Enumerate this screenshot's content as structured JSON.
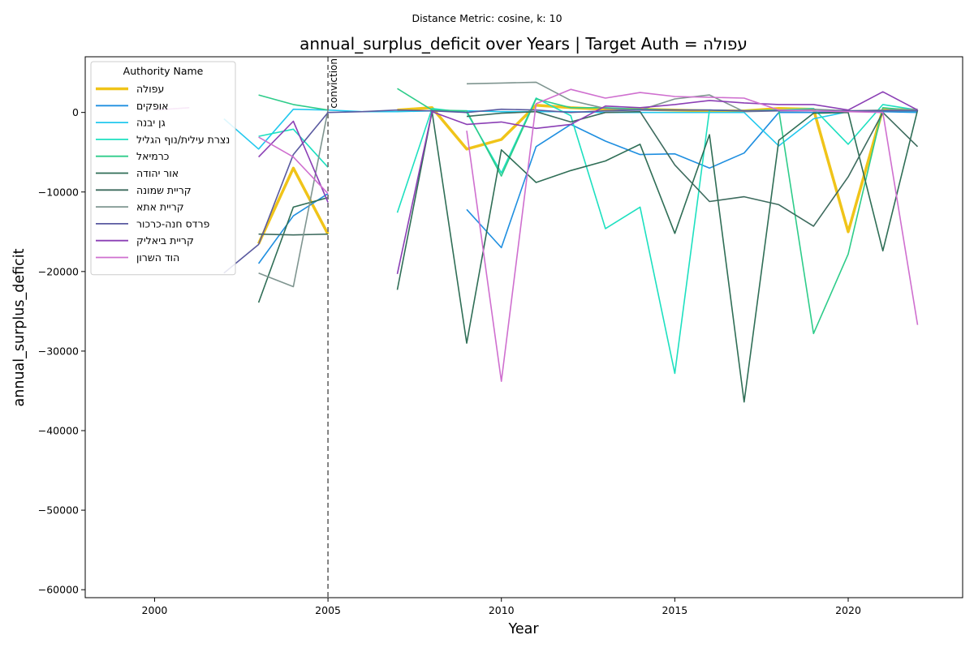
{
  "chart_data": {
    "type": "line",
    "suptitle": "Distance Metric: cosine, k: 10",
    "title": "annual_surplus_deficit over Years | Target Auth = עפולה",
    "xlabel": "Year",
    "ylabel": "annual_surplus_deficit",
    "xlim": [
      1998,
      2023.3
    ],
    "ylim": [
      -61000,
      7000
    ],
    "xticks": [
      2000,
      2005,
      2010,
      2015,
      2020
    ],
    "yticks": [
      -60000,
      -50000,
      -40000,
      -30000,
      -20000,
      -10000,
      0
    ],
    "grid": false,
    "legend": {
      "title": "Authority Name",
      "placement": "top-left"
    },
    "annotation": {
      "label": "conviction",
      "x": 2005
    },
    "series": [
      {
        "name": "עפולה",
        "color": "#f0c419",
        "target": true,
        "points": [
          [
            2003,
            -16500
          ],
          [
            2004,
            -7000
          ],
          [
            2005,
            -15300
          ],
          null,
          [
            2007,
            300
          ],
          [
            2008,
            600
          ],
          [
            2009,
            -4600
          ],
          [
            2010,
            -3400
          ],
          [
            2011,
            900
          ],
          [
            2012,
            600
          ],
          [
            2013,
            400
          ],
          [
            2014,
            400
          ],
          [
            2015,
            300
          ],
          [
            2016,
            200
          ],
          [
            2017,
            200
          ],
          [
            2018,
            500
          ],
          [
            2019,
            400
          ],
          [
            2020,
            -15000
          ],
          [
            2021,
            400
          ],
          [
            2022,
            300
          ]
        ]
      },
      {
        "name": "אופקים",
        "color": "#1f8fe0",
        "points": [
          [
            2003,
            -19000
          ],
          [
            2004,
            -13000
          ],
          [
            2005,
            -10200
          ],
          null,
          [
            2009,
            -12200
          ],
          [
            2010,
            -17000
          ],
          [
            2011,
            -4300
          ],
          [
            2012,
            -1500
          ],
          [
            2013,
            -3600
          ],
          [
            2014,
            -5300
          ],
          [
            2015,
            -5200
          ],
          [
            2016,
            -7000
          ],
          [
            2017,
            -5100
          ],
          [
            2018,
            0
          ],
          [
            2019,
            0
          ],
          [
            2020,
            100
          ],
          [
            2021,
            100
          ],
          [
            2022,
            0
          ]
        ]
      },
      {
        "name": "גן יבנה",
        "color": "#22c8ee",
        "points": [
          [
            2002,
            -800
          ],
          [
            2003,
            -4600
          ],
          [
            2004,
            400
          ],
          [
            2005,
            300
          ],
          [
            2006,
            100
          ],
          [
            2007,
            100
          ],
          [
            2008,
            200
          ],
          [
            2009,
            200
          ],
          [
            2010,
            100
          ],
          [
            2011,
            100
          ],
          [
            2012,
            100
          ],
          [
            2013,
            0
          ],
          [
            2014,
            0
          ],
          [
            2015,
            0
          ],
          [
            2016,
            0
          ],
          [
            2017,
            0
          ],
          [
            2018,
            -4200
          ],
          [
            2019,
            -800
          ],
          [
            2020,
            100
          ],
          [
            2021,
            200
          ],
          [
            2022,
            100
          ]
        ]
      },
      {
        "name": "נצרת עילית/נוף הגליל",
        "color": "#1de0c0",
        "points": [
          [
            2003,
            -3000
          ],
          [
            2004,
            -2100
          ],
          [
            2005,
            -6900
          ],
          null,
          [
            2007,
            -12600
          ],
          [
            2008,
            500
          ],
          [
            2009,
            0
          ],
          [
            2010,
            -7600
          ],
          [
            2011,
            1800
          ],
          [
            2012,
            -400
          ],
          [
            2013,
            -14600
          ],
          [
            2014,
            -11900
          ],
          [
            2015,
            -32800
          ],
          [
            2016,
            300
          ],
          [
            2017,
            200
          ],
          [
            2018,
            300
          ],
          [
            2019,
            500
          ],
          [
            2020,
            -4000
          ],
          [
            2021,
            1000
          ],
          [
            2022,
            300
          ]
        ]
      },
      {
        "name": "כרמיאל",
        "color": "#2ecc8a",
        "points": [
          [
            2003,
            2200
          ],
          [
            2004,
            1000
          ],
          [
            2005,
            300
          ],
          null,
          [
            2007,
            3000
          ],
          [
            2008,
            300
          ],
          [
            2009,
            200
          ],
          [
            2010,
            -8000
          ],
          [
            2011,
            1700
          ],
          [
            2012,
            600
          ],
          [
            2013,
            600
          ],
          [
            2014,
            400
          ],
          [
            2015,
            300
          ],
          [
            2016,
            300
          ],
          [
            2017,
            200
          ],
          [
            2018,
            300
          ],
          [
            2019,
            -27800
          ],
          [
            2020,
            -17800
          ],
          [
            2021,
            600
          ],
          [
            2022,
            200
          ]
        ]
      },
      {
        "name": "אור יהודה",
        "color": "#2f6e56",
        "points": [
          [
            2003,
            -23900
          ],
          [
            2004,
            -11900
          ],
          [
            2005,
            -10700
          ],
          null,
          [
            2007,
            -22300
          ],
          [
            2008,
            100
          ],
          [
            2009,
            -29000
          ],
          [
            2010,
            -4700
          ],
          [
            2011,
            -8800
          ],
          [
            2012,
            -7300
          ],
          [
            2013,
            -6100
          ],
          [
            2014,
            -4000
          ],
          [
            2015,
            -15200
          ],
          [
            2016,
            -2800
          ],
          [
            2017,
            -36400
          ],
          [
            2018,
            -3500
          ],
          [
            2019,
            -100
          ],
          [
            2020,
            0
          ],
          [
            2021,
            -17400
          ],
          [
            2022,
            300
          ]
        ]
      },
      {
        "name": "קריית שמונה",
        "color": "#3d6b5e",
        "points": [
          [
            2003,
            -15300
          ],
          [
            2004,
            -15400
          ],
          [
            2005,
            -15300
          ],
          null,
          [
            2009,
            -500
          ],
          [
            2010,
            -100
          ],
          [
            2011,
            100
          ],
          [
            2012,
            -1200
          ],
          [
            2013,
            0
          ],
          [
            2014,
            100
          ],
          [
            2015,
            -6600
          ],
          [
            2016,
            -11200
          ],
          [
            2017,
            -10600
          ],
          [
            2018,
            -11600
          ],
          [
            2019,
            -14300
          ],
          [
            2020,
            -8100
          ],
          [
            2021,
            0
          ],
          [
            2022,
            -4300
          ]
        ]
      },
      {
        "name": "קריית אתא",
        "color": "#7f9590",
        "points": [
          [
            2003,
            -20200
          ],
          [
            2004,
            -21900
          ],
          [
            2005,
            300
          ],
          null,
          [
            2009,
            3600
          ],
          [
            2010,
            3700
          ],
          [
            2011,
            3800
          ],
          [
            2012,
            1500
          ],
          [
            2013,
            500
          ],
          [
            2014,
            300
          ],
          [
            2015,
            1700
          ],
          [
            2016,
            2200
          ],
          [
            2017,
            100
          ],
          [
            2018,
            200
          ],
          [
            2019,
            400
          ],
          [
            2020,
            200
          ],
          [
            2021,
            300
          ],
          [
            2022,
            400
          ]
        ]
      },
      {
        "name": "פרדס חנה-כרכור",
        "color": "#5a5aa0",
        "points": [
          [
            2002,
            -20200
          ],
          [
            2003,
            -16600
          ],
          [
            2004,
            -5300
          ],
          [
            2005,
            0
          ],
          [
            2006,
            100
          ],
          [
            2007,
            300
          ],
          [
            2008,
            200
          ],
          [
            2009,
            0
          ],
          [
            2010,
            400
          ],
          [
            2011,
            300
          ],
          [
            2012,
            0
          ],
          [
            2013,
            200
          ],
          [
            2014,
            300
          ],
          [
            2015,
            300
          ],
          [
            2016,
            300
          ],
          [
            2017,
            200
          ],
          [
            2018,
            200
          ],
          [
            2019,
            200
          ],
          [
            2020,
            200
          ],
          [
            2021,
            200
          ],
          [
            2022,
            200
          ]
        ]
      },
      {
        "name": "קריית ביאליק",
        "color": "#8b3fb5",
        "points": [
          [
            2003,
            -5600
          ],
          [
            2004,
            -1100
          ],
          [
            2005,
            -11300
          ],
          null,
          [
            2007,
            -20300
          ],
          [
            2008,
            100
          ],
          [
            2009,
            -1500
          ],
          [
            2010,
            -1200
          ],
          [
            2011,
            -2000
          ],
          [
            2012,
            -1500
          ],
          [
            2013,
            800
          ],
          [
            2014,
            600
          ],
          [
            2015,
            1000
          ],
          [
            2016,
            1500
          ],
          [
            2017,
            1200
          ],
          [
            2018,
            1000
          ],
          [
            2019,
            1000
          ],
          [
            2020,
            300
          ],
          [
            2021,
            2600
          ],
          [
            2022,
            300
          ]
        ]
      },
      {
        "name": "הוד השרון",
        "color": "#cf6fcf",
        "points": [
          [
            2000,
            300
          ],
          [
            2001,
            600
          ],
          null,
          [
            2003,
            -3100
          ],
          [
            2004,
            -5600
          ],
          [
            2005,
            -10200
          ],
          null,
          [
            2009,
            -2300
          ],
          [
            2010,
            -33800
          ],
          [
            2011,
            1100
          ],
          [
            2012,
            2900
          ],
          [
            2013,
            1800
          ],
          [
            2014,
            2500
          ],
          [
            2015,
            2000
          ],
          [
            2016,
            1900
          ],
          [
            2017,
            1800
          ],
          [
            2018,
            300
          ],
          [
            2019,
            200
          ],
          [
            2020,
            100
          ],
          [
            2021,
            0
          ],
          [
            2022,
            -26700
          ]
        ]
      }
    ]
  }
}
